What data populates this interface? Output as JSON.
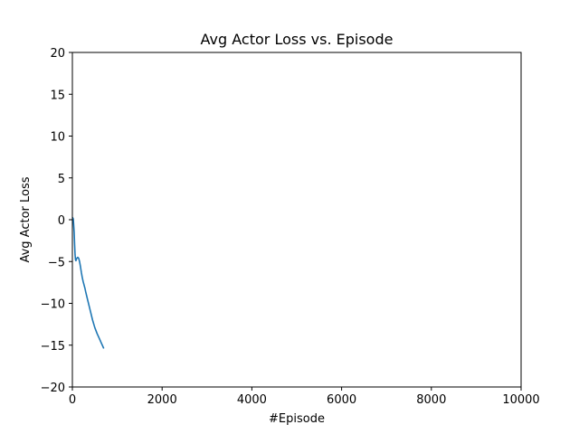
{
  "chart_data": {
    "type": "line",
    "title": "Avg Actor Loss vs. Episode",
    "xlabel": "#Episode",
    "ylabel": "Avg Actor Loss",
    "xlim": [
      0,
      10000
    ],
    "ylim": [
      -20,
      20
    ],
    "xticks": [
      0,
      2000,
      4000,
      6000,
      8000,
      10000
    ],
    "yticks": [
      -20,
      -15,
      -10,
      -5,
      0,
      5,
      10,
      15,
      20
    ],
    "grid": false,
    "series": [
      {
        "color": "#1f77b4",
        "x": [
          0,
          20,
          40,
          50,
          60,
          70,
          80,
          90,
          100,
          120,
          140,
          160,
          180,
          200,
          220,
          240,
          260,
          280,
          300,
          350,
          400,
          450,
          500,
          550,
          600,
          650,
          700
        ],
        "y": [
          0.3,
          0.1,
          -1.5,
          -3.0,
          -4.2,
          -4.8,
          -4.9,
          -4.7,
          -4.6,
          -4.5,
          -4.6,
          -5.0,
          -5.6,
          -6.3,
          -6.9,
          -7.4,
          -7.8,
          -8.2,
          -8.7,
          -9.8,
          -10.9,
          -12.0,
          -12.9,
          -13.6,
          -14.2,
          -14.8,
          -15.4
        ]
      }
    ]
  }
}
